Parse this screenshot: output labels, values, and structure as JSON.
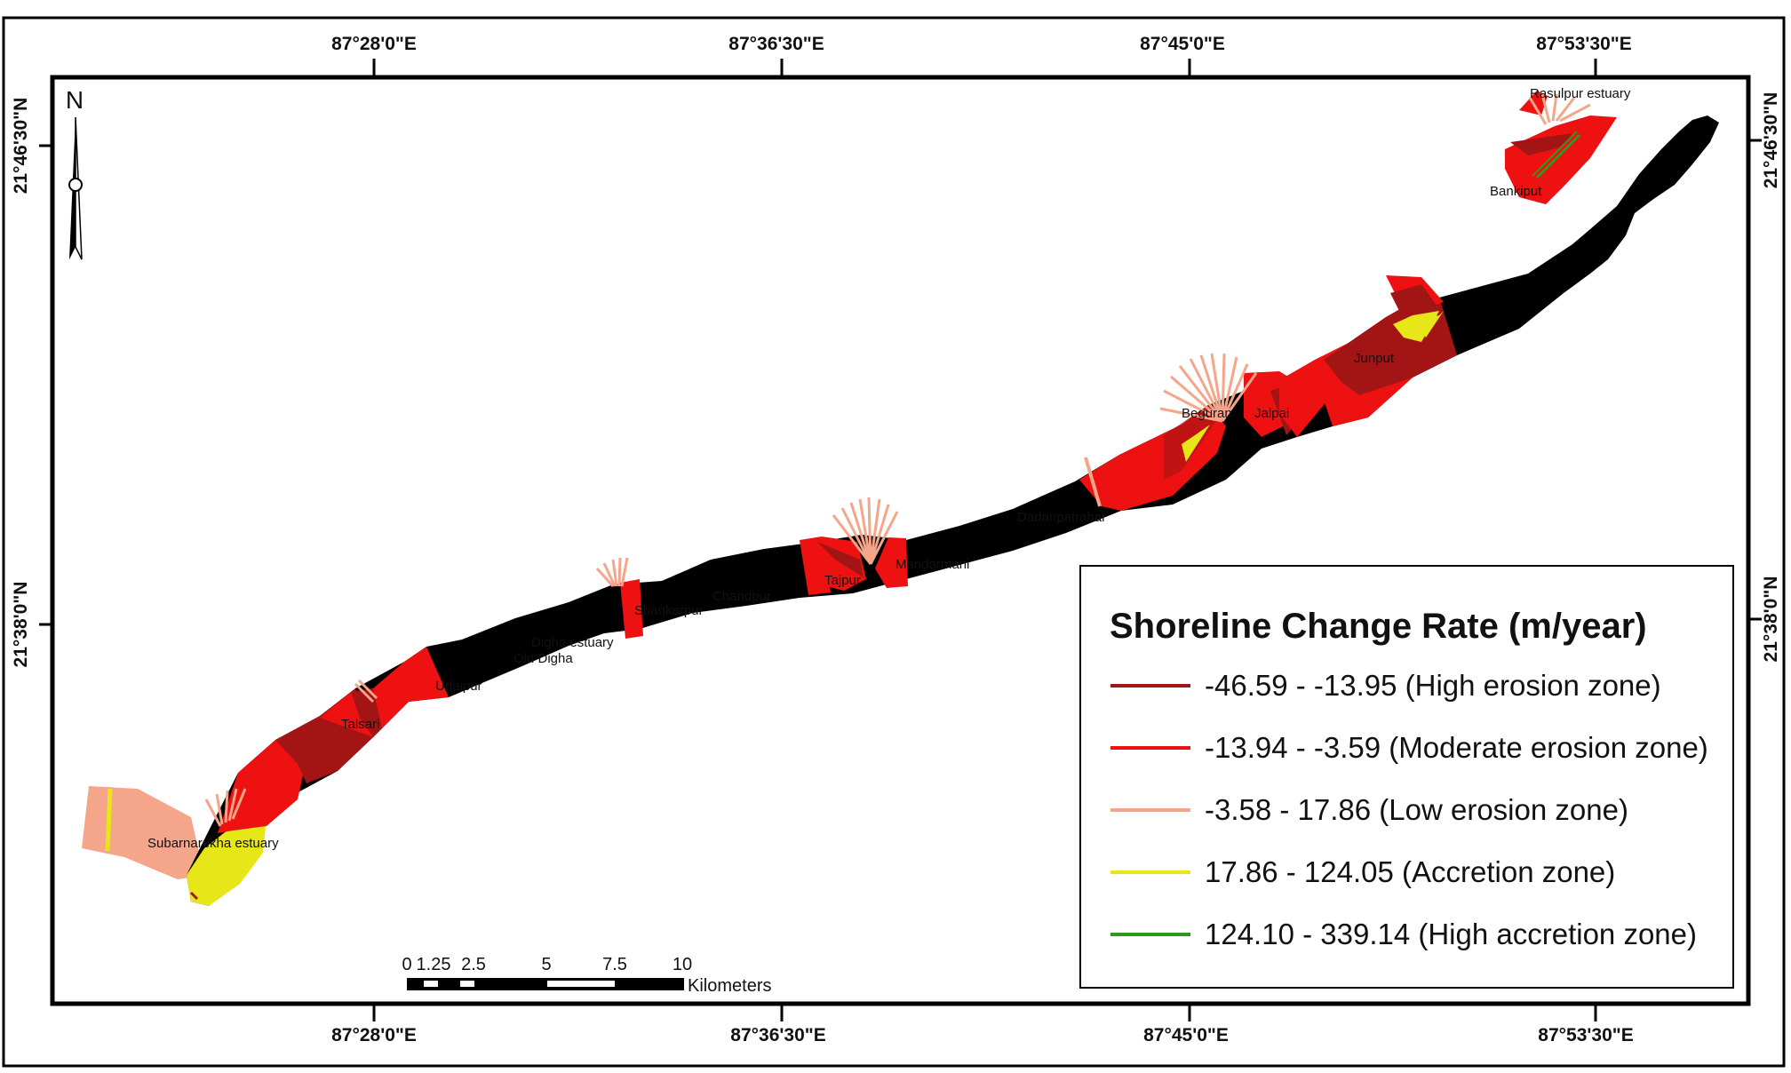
{
  "coords": {
    "top": [
      "87°28'0\"E",
      "87°36'30\"E",
      "87°45'0\"E",
      "87°53'30\"E"
    ],
    "bottom": [
      "87°28'0\"E",
      "87°36'30\"E",
      "87°45'0\"E",
      "87°53'30\"E"
    ],
    "left": [
      "21°46'30\"N",
      "21°38'0\"N"
    ],
    "right": [
      "21°46'30\"N",
      "21°38'0\"N"
    ]
  },
  "north_label": "N",
  "places": [
    "Rasulpur estuary",
    "Bankiput",
    "Junput",
    "Jalpai",
    "Beguran",
    "Dadanpatrabar",
    "Mandarmani",
    "Tajpur",
    "Chandpur",
    "Shankarpur",
    "Digha estuary",
    "Old Digha",
    "Udaipur",
    "Talsari",
    "Subarnarekha estuary"
  ],
  "legend": {
    "title": "Shoreline Change Rate (m/year)",
    "items": [
      {
        "label": "-46.59 - -13.95 (High erosion zone)",
        "color": "#a31515"
      },
      {
        "label": "-13.94 - -3.59 (Moderate erosion zone)",
        "color": "#ee1111"
      },
      {
        "label": "-3.58 - 17.86 (Low erosion zone)",
        "color": "#f4a58a"
      },
      {
        "label": "17.86 - 124.05 (Accretion zone)",
        "color": "#e6e619"
      },
      {
        "label": "124.10 - 339.14 (High accretion zone)",
        "color": "#2a9a1a"
      }
    ]
  },
  "scale": {
    "ticks": [
      "0",
      "1.25",
      "2.5",
      "5",
      "7.5",
      "10"
    ],
    "unit": "Kilometers"
  }
}
